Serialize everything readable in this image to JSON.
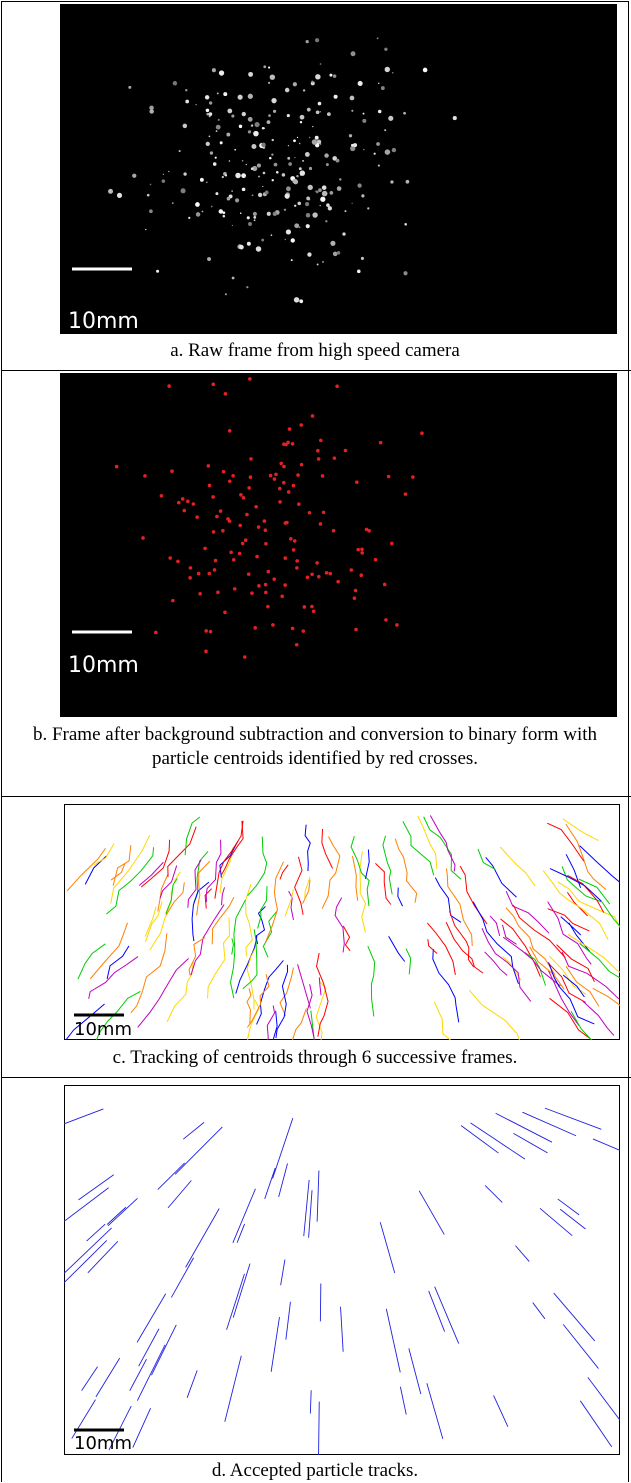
{
  "panels": [
    {
      "scale_label": "10mm",
      "caption": "a. Raw frame from high speed camera"
    },
    {
      "scale_label": "10mm",
      "caption": "b. Frame after background subtraction and conversion to binary form with particle centroids identified by red crosses."
    },
    {
      "scale_label": "10mm",
      "caption": "c. Tracking of centroids through 6 successive frames."
    },
    {
      "scale_label": "10mm",
      "caption": "d. Accepted particle tracks."
    }
  ]
}
